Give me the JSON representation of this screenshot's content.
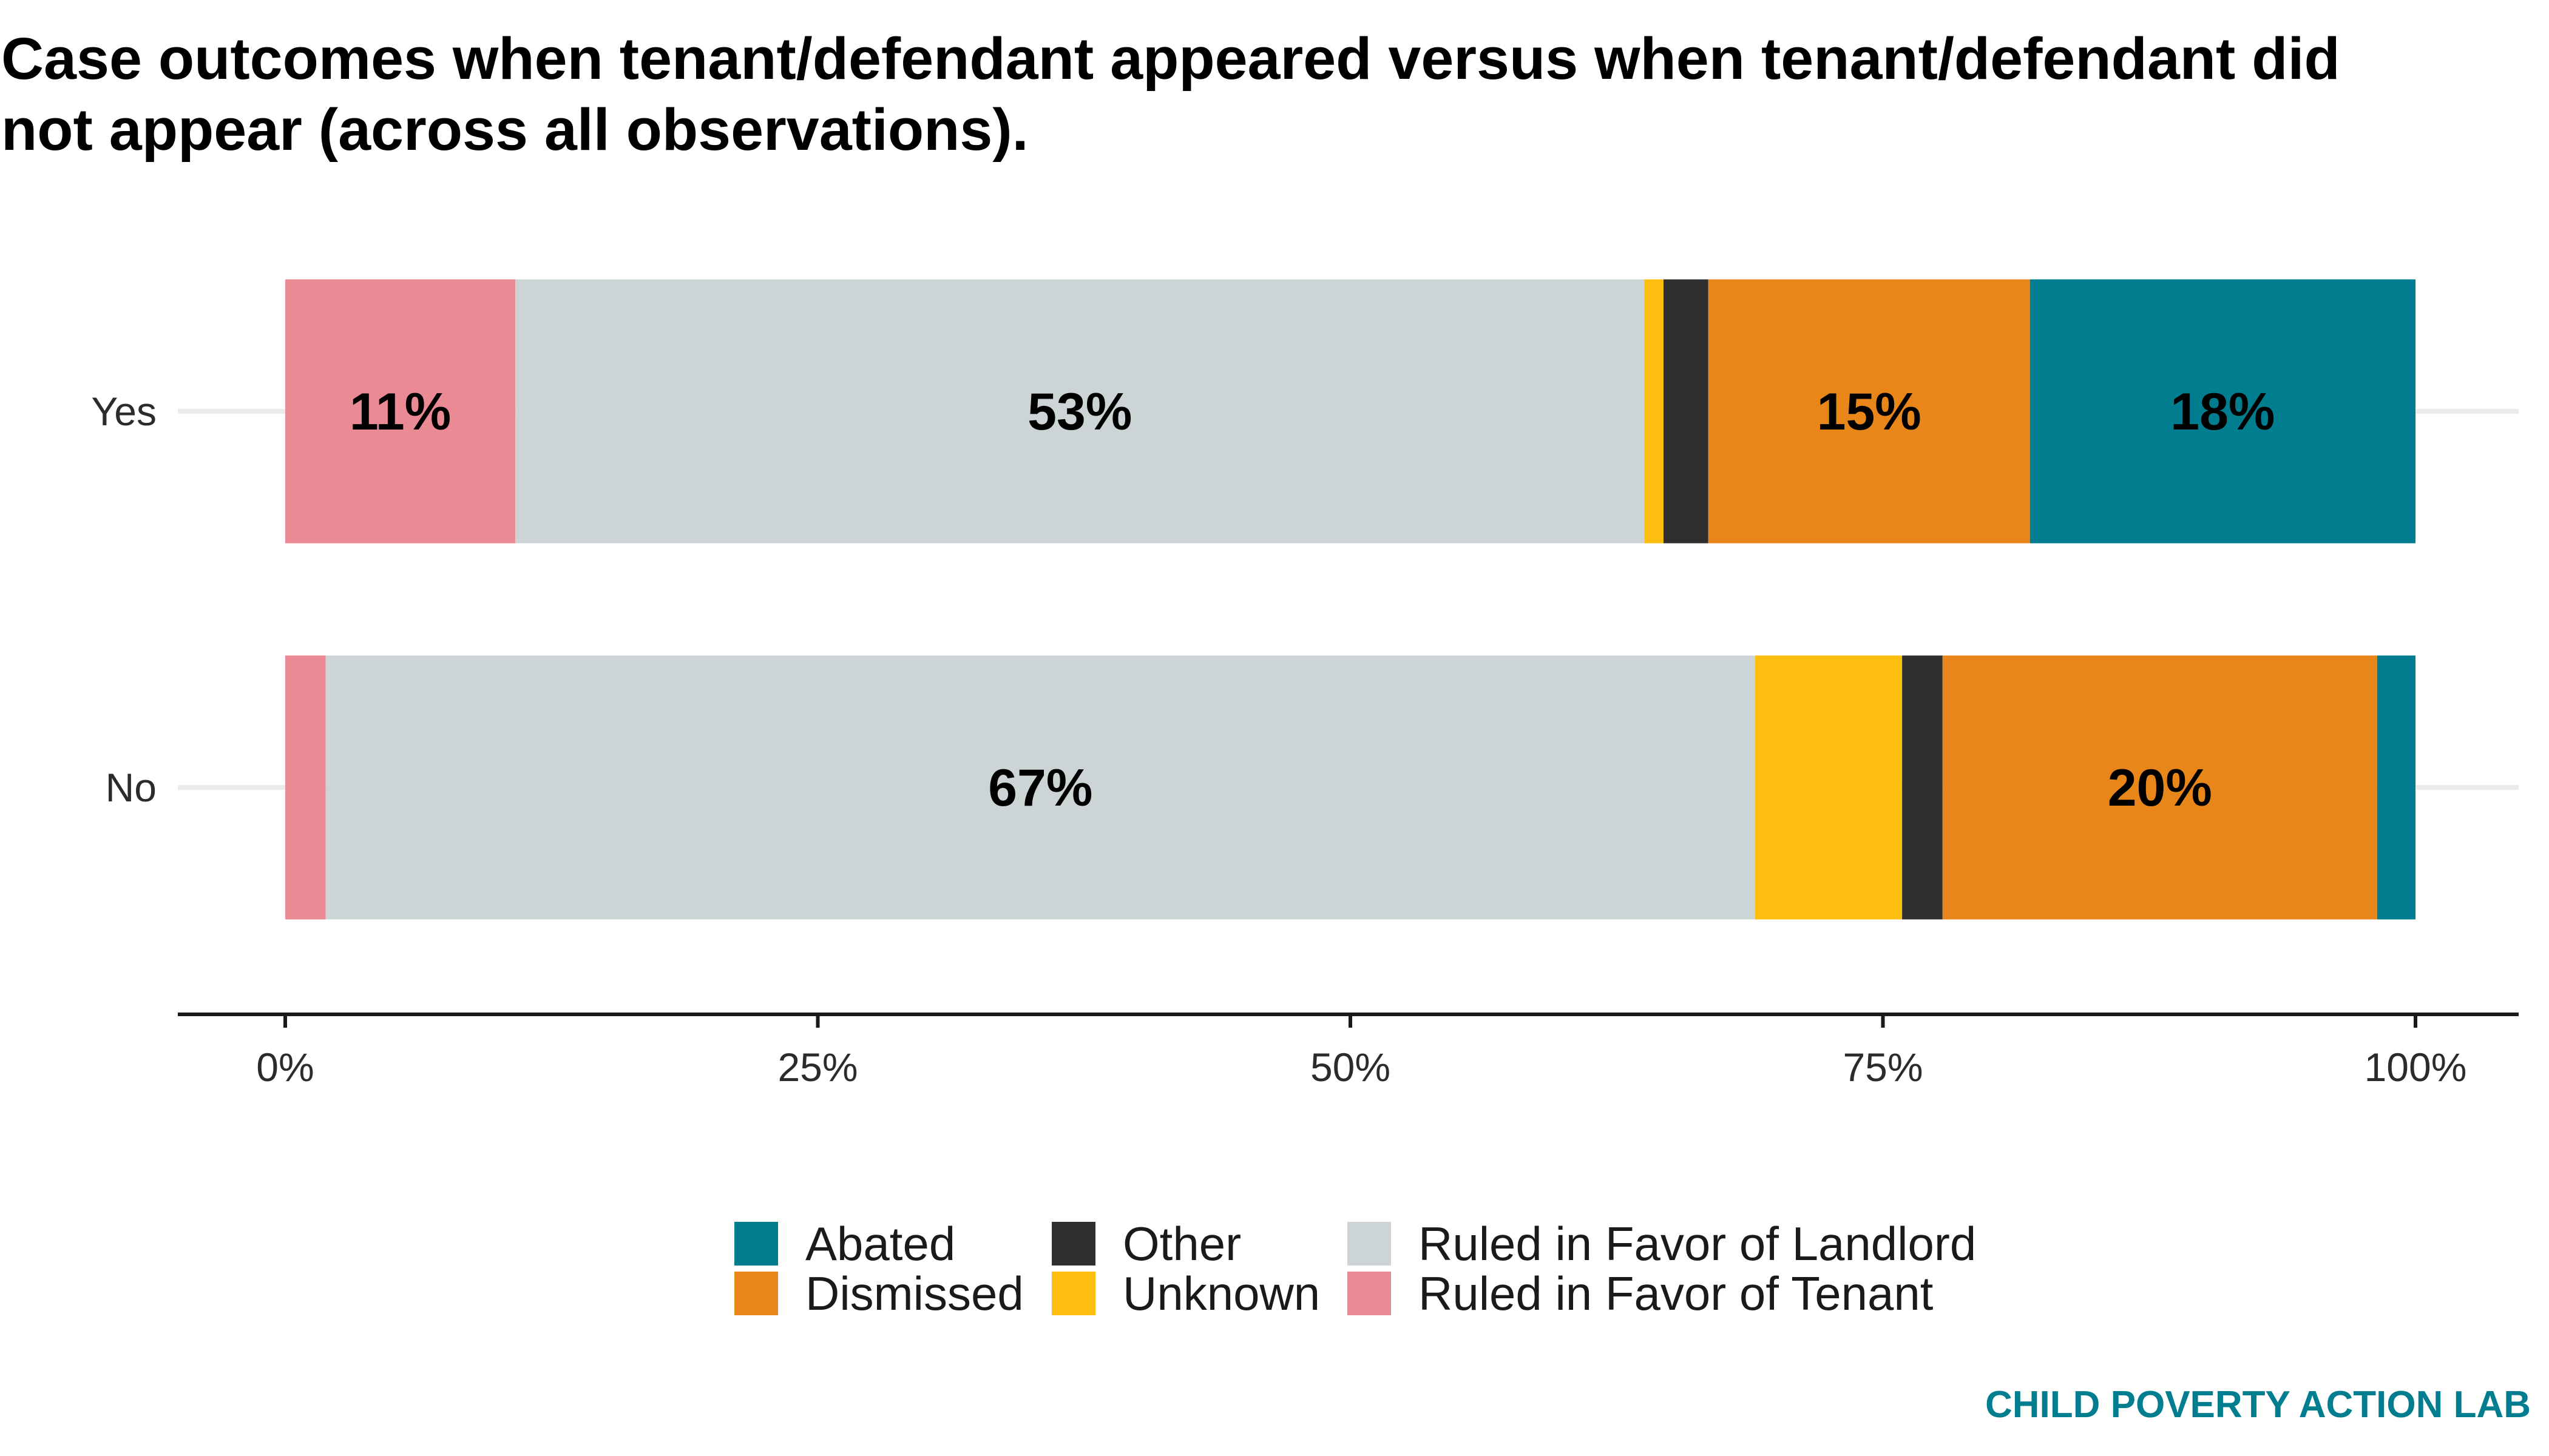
{
  "chart_data": {
    "type": "bar",
    "orientation": "horizontal",
    "stacked": true,
    "title": "Case outcomes when tenant/defendant appeared versus when tenant/defendant did not appear (across all observations).",
    "categories": [
      "Yes",
      "No"
    ],
    "xlim": [
      0,
      1
    ],
    "x_ticks": [
      "0%",
      "25%",
      "50%",
      "75%",
      "100%"
    ],
    "series": [
      {
        "name": "Ruled in Favor of Tenant",
        "color": "#E98A95",
        "values": [
          0.108,
          0.019
        ],
        "labels": [
          "11%",
          ""
        ]
      },
      {
        "name": "Ruled in Favor of Landlord",
        "color": "#CCD4D6",
        "values": [
          0.53,
          0.671
        ],
        "labels": [
          "53%",
          "67%"
        ]
      },
      {
        "name": "Unknown",
        "color": "#FDBE10",
        "values": [
          0.009,
          0.069
        ],
        "labels": [
          "",
          ""
        ]
      },
      {
        "name": "Other",
        "color": "#2F2F2F",
        "values": [
          0.021,
          0.019
        ],
        "labels": [
          "",
          ""
        ]
      },
      {
        "name": "Dismissed",
        "color": "#E8861A",
        "values": [
          0.151,
          0.204
        ],
        "labels": [
          "15%",
          "20%"
        ]
      },
      {
        "name": "Abated",
        "color": "#007E8F",
        "values": [
          0.181,
          0.018
        ],
        "labels": [
          "18%",
          ""
        ]
      }
    ],
    "legend": {
      "placement": "bottom",
      "order": [
        "Abated",
        "Dismissed",
        "Other",
        "Unknown",
        "Ruled in Favor of Landlord",
        "Ruled in Favor of Tenant"
      ]
    },
    "grid": "horizontal major only"
  },
  "credit": "CHILD POVERTY ACTION LAB"
}
